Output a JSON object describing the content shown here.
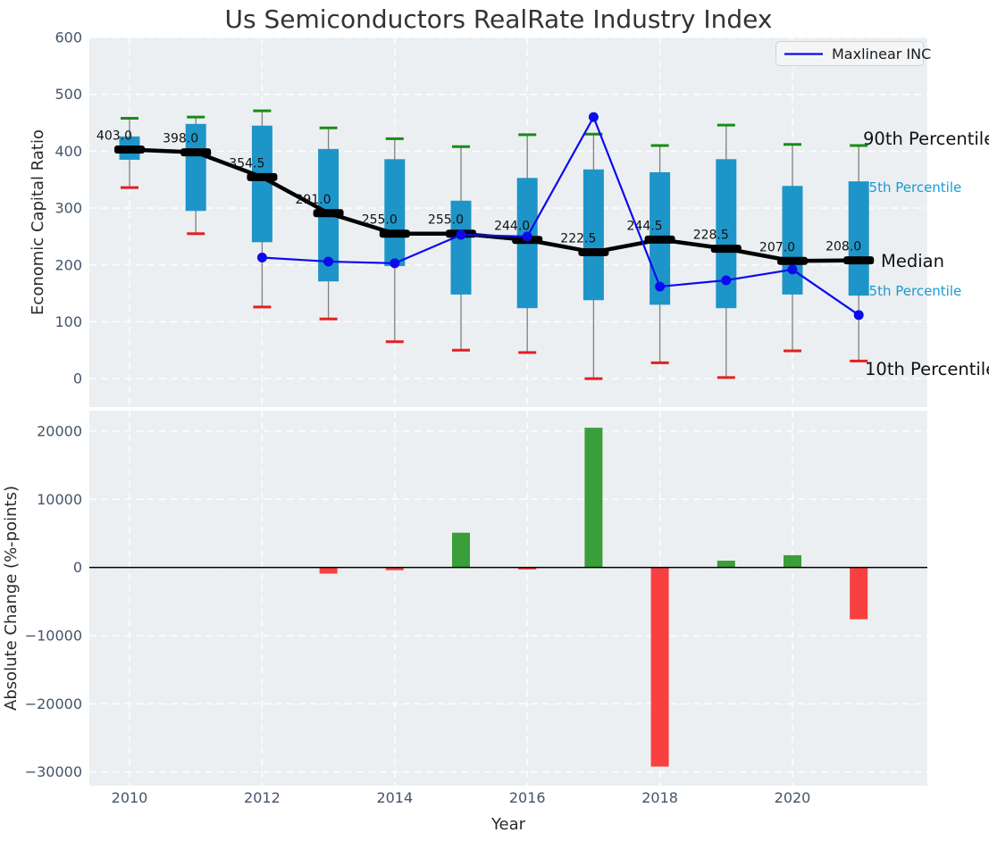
{
  "title": "Us Semiconductors RealRate Industry Index",
  "legend": {
    "label": "Maxlinear INC"
  },
  "colors": {
    "axes_bg": "#eceff1",
    "grid": "#ffffff",
    "box": "#1e95c9",
    "whisker": "#7f7f7f",
    "cap_high": "#168c16",
    "cap_low": "#e51f1f",
    "median": "#000000",
    "company_line": "#0b0bee",
    "bar_up": "#3a9e3a",
    "bar_down": "#f94040",
    "annot_cyan": "#189ad4",
    "tick": "#44546a"
  },
  "chart_data": [
    {
      "type": "boxplot+line",
      "title": "Us Semiconductors RealRate Industry Index",
      "ylabel": "Economic Capital Ratio",
      "ylim": [
        -50,
        600
      ],
      "yticks": [
        0,
        100,
        200,
        300,
        400,
        500,
        600
      ],
      "grid": "on",
      "years": [
        2010,
        2011,
        2012,
        2013,
        2014,
        2015,
        2016,
        2017,
        2018,
        2019,
        2020,
        2021
      ],
      "p90": [
        458,
        460,
        471,
        441,
        422,
        408,
        429,
        430,
        410,
        446,
        412,
        410
      ],
      "p75": [
        426,
        448,
        445,
        404,
        386,
        313,
        353,
        368,
        363,
        386,
        339,
        347
      ],
      "median": [
        403.0,
        398.0,
        354.5,
        291.0,
        255.0,
        255.0,
        244.0,
        222.5,
        244.5,
        228.5,
        207.0,
        208.0
      ],
      "p25": [
        385,
        295,
        240,
        171,
        198,
        148,
        124,
        138,
        130,
        124,
        148,
        146
      ],
      "p10": [
        336,
        255,
        126,
        105,
        65,
        50,
        46,
        0,
        28,
        2,
        49,
        31
      ],
      "median_labels": [
        "403.0",
        "398.0",
        "354.5",
        "291.0",
        "255.0",
        "255.0",
        "244.0",
        "222.5",
        "244.5",
        "228.5",
        "207.0",
        "208.0"
      ],
      "series": [
        {
          "name": "Maxlinear INC",
          "years": [
            2012,
            2013,
            2014,
            2015,
            2016,
            2017,
            2018,
            2019,
            2020,
            2021
          ],
          "values": [
            213,
            206,
            203,
            253,
            250,
            460,
            162,
            173,
            192,
            112
          ]
        }
      ],
      "annotations": [
        "90th Percentile",
        "75th Percentile",
        "Median",
        "25th Percentile",
        "10th Percentile"
      ],
      "legend_position": "upper right"
    },
    {
      "type": "bar",
      "ylabel": "Absolute Change (%-points)",
      "xlabel": "Year",
      "ylim": [
        -32000,
        23000
      ],
      "yticks": [
        -30000,
        -20000,
        -10000,
        0,
        10000,
        20000
      ],
      "xticks": [
        2010,
        2012,
        2014,
        2016,
        2018,
        2020
      ],
      "grid": "on",
      "categories": [
        2010,
        2011,
        2012,
        2013,
        2014,
        2015,
        2016,
        2017,
        2018,
        2019,
        2020,
        2021
      ],
      "values": [
        0,
        0,
        0,
        -900,
        -400,
        5100,
        -300,
        20500,
        -29200,
        1000,
        1800,
        -7600
      ]
    }
  ]
}
